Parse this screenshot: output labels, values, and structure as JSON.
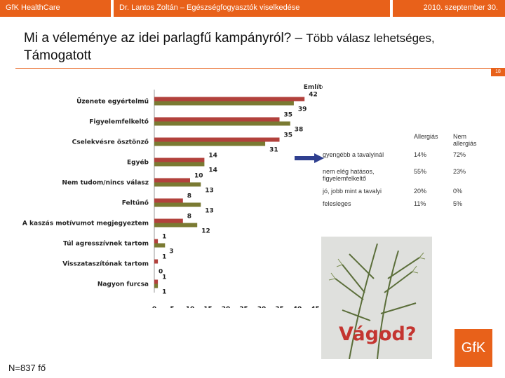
{
  "header": {
    "left": "GfK HealthCare",
    "center": "Dr. Lantos Zoltán – Egészségfogyasztók viselkedése",
    "right": "2010. szeptember 30."
  },
  "title": {
    "main": "Mi a véleménye az idei parlagfű kampányról? –",
    "sub": "Több válasz lehetséges,",
    "line2": "Támogatott"
  },
  "page_number": "18",
  "sample_size": "N=837 fő",
  "image_caption": "Vágod?",
  "logo_text": "GfK",
  "chart_data": {
    "type": "bar",
    "orientation": "horizontal",
    "title": "Említések %-ában",
    "categories": [
      "Üzenete egyértelmű",
      "Figyelemfelkeltő",
      "Cselekvésre ösztönző",
      "Egyéb",
      "Nem tudom/nincs válasz",
      "Feltűnő",
      "A kaszás motívumot megjegyeztem",
      "Túl agresszívnek tartom",
      "Visszataszítónak tartom",
      "Nagyon furcsa"
    ],
    "series": [
      {
        "color": "#b2413c",
        "values": [
          42,
          35,
          35,
          14,
          10,
          8,
          8,
          1,
          1,
          1
        ]
      },
      {
        "color": "#7a7a32",
        "values": [
          39,
          38,
          31,
          14,
          13,
          13,
          12,
          3,
          0,
          1
        ]
      }
    ],
    "xlim": [
      0,
      45
    ],
    "xticks": [
      "0",
      "5",
      "10",
      "15",
      "20",
      "25",
      "30",
      "35",
      "40",
      "45"
    ],
    "grid": false
  },
  "table": {
    "headers": [
      "",
      "Allergiás",
      "Nem allergiás"
    ],
    "rows": [
      [
        "gyengébb a tavalyinál",
        "14%",
        "72%"
      ],
      [
        "nem elég hatásos, figyelemfelkeltő",
        "55%",
        "23%"
      ],
      [
        "jó, jobb mint a tavalyi",
        "20%",
        "0%"
      ],
      [
        "felesleges",
        "11%",
        "5%"
      ]
    ]
  },
  "colors": {
    "accent": "#e8611a",
    "arrow": "#2f3f8f"
  }
}
